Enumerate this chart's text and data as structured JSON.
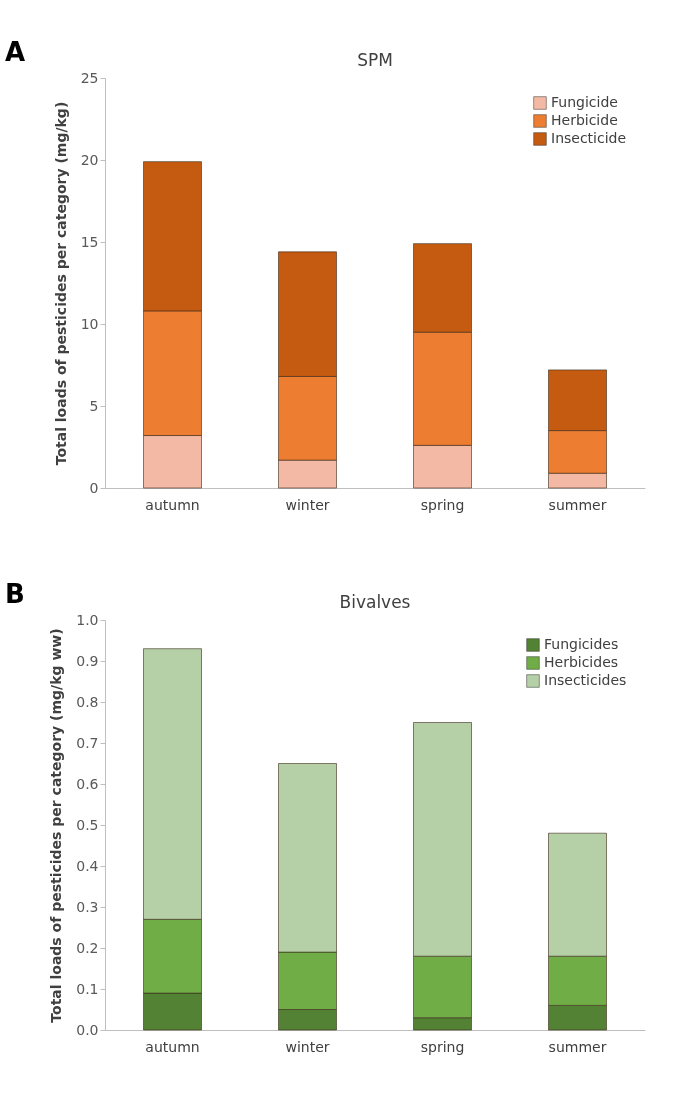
{
  "chart_data": [
    {
      "type": "bar",
      "title": "SPM",
      "ylabel": "Total loads of pesticides per category (mg/kg)",
      "annotations": [
        "A"
      ],
      "categories": [
        "autumn",
        "winter",
        "spring",
        "summer"
      ],
      "stacked": true,
      "legend": "top right",
      "grid": false,
      "ylim": [
        0,
        25
      ],
      "yticks": [
        0,
        5,
        10,
        15,
        20,
        25
      ],
      "series": [
        {
          "name": "Fungicide",
          "color": "#f4b9a5",
          "values": [
            3.2,
            1.7,
            2.6,
            0.9
          ]
        },
        {
          "name": "Herbicide",
          "color": "#ed7d31",
          "values": [
            7.6,
            5.1,
            6.9,
            2.6
          ]
        },
        {
          "name": "Insecticide",
          "color": "#c55a11",
          "values": [
            9.1,
            7.6,
            5.4,
            3.7
          ]
        }
      ]
    },
    {
      "type": "bar",
      "title": "Bivalves",
      "ylabel": "Total loads of pesticides per category (mg/kg ww)",
      "annotations": [
        "B"
      ],
      "categories": [
        "autumn",
        "winter",
        "spring",
        "summer"
      ],
      "stacked": true,
      "legend": "top right",
      "grid": false,
      "ylim": [
        0,
        1.0
      ],
      "yticks": [
        {
          "value": 0,
          "label": "0.0"
        },
        0.1,
        0.2,
        0.3,
        0.4,
        0.5,
        0.6,
        0.7,
        0.8,
        0.9,
        {
          "value": 1,
          "label": "1.0"
        }
      ],
      "series": [
        {
          "name": "Fungicides",
          "color": "#548235",
          "values": [
            0.09,
            0.05,
            0.03,
            0.06
          ]
        },
        {
          "name": "Herbicides",
          "color": "#70ad47",
          "values": [
            0.18,
            0.14,
            0.15,
            0.12
          ]
        },
        {
          "name": "Insecticides",
          "color": "#b5d0a6",
          "values": [
            0.66,
            0.46,
            0.57,
            0.3
          ]
        }
      ]
    }
  ]
}
